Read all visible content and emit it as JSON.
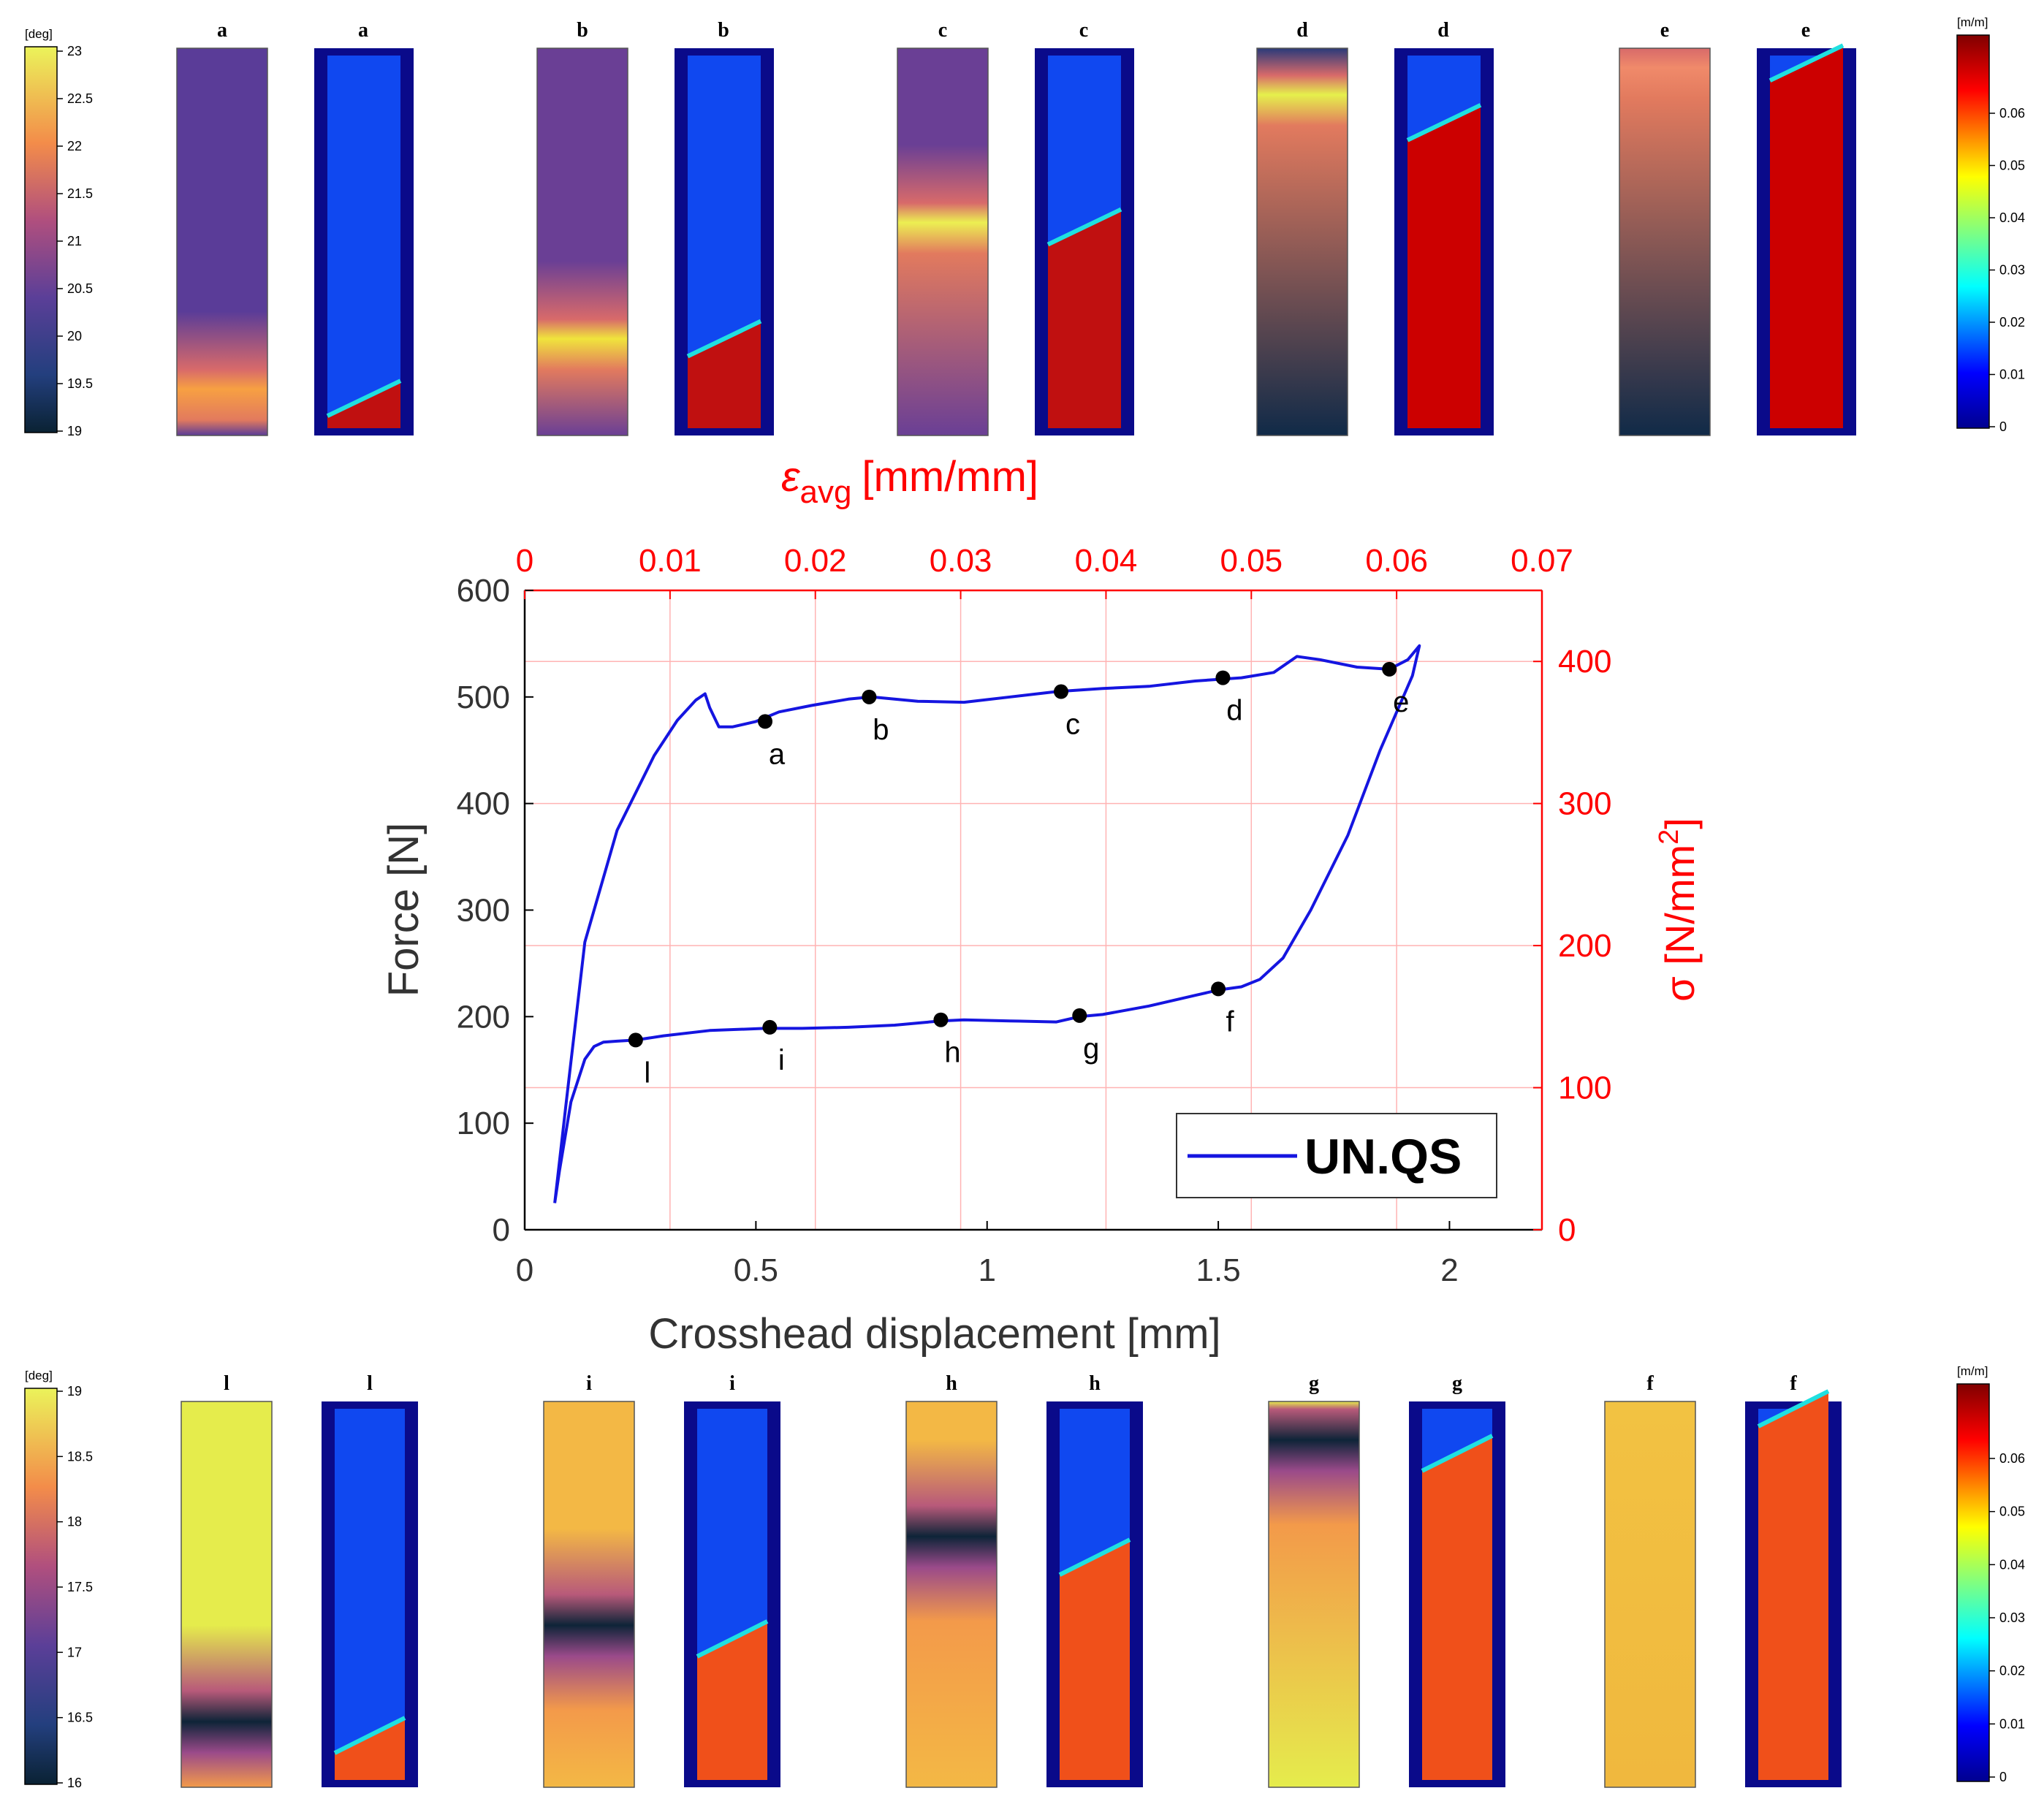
{
  "chart_data": {
    "type": "line",
    "title": "",
    "xlabel": "Crosshead displacement [mm]",
    "ylabel": "Force [N]",
    "xlim": [
      0,
      2.2
    ],
    "ylim": [
      0,
      600
    ],
    "xticks": [
      "0",
      "0.5",
      "1",
      "1.5",
      "2"
    ],
    "yticks": [
      "0",
      "100",
      "200",
      "300",
      "400",
      "500",
      "600"
    ],
    "x2label": "ε",
    "x2label_sub": "avg",
    "x2label_unit": "[mm/mm]",
    "x2lim": [
      0,
      0.07
    ],
    "x2ticks": [
      "0",
      "0.01",
      "0.02",
      "0.03",
      "0.04",
      "0.05",
      "0.06",
      "0.07"
    ],
    "y2label": "σ [N/mm",
    "y2label_sup": "2",
    "y2label_close": "]",
    "y2lim": [
      0,
      450
    ],
    "y2ticks": [
      "0",
      "100",
      "200",
      "300",
      "400"
    ],
    "grid": true,
    "legend": {
      "label": "UN.QS",
      "position": "bottom-right"
    },
    "series": [
      {
        "name": "UN.QS",
        "color": "#1515e0",
        "x": [
          0.065,
          0.09,
          0.13,
          0.2,
          0.28,
          0.33,
          0.37,
          0.39,
          0.4,
          0.42,
          0.45,
          0.5,
          0.55,
          0.62,
          0.7,
          0.75,
          0.85,
          0.95,
          1.05,
          1.15,
          1.25,
          1.35,
          1.45,
          1.55,
          1.62,
          1.67,
          1.72,
          1.8,
          1.87,
          1.91,
          1.935,
          1.92,
          1.85,
          1.78,
          1.7,
          1.64,
          1.59,
          1.55,
          1.5,
          1.45,
          1.35,
          1.25,
          1.2,
          1.15,
          1.05,
          0.95,
          0.9,
          0.8,
          0.7,
          0.6,
          0.52,
          0.4,
          0.3,
          0.24,
          0.2,
          0.17,
          0.15,
          0.13,
          0.1,
          0.075,
          0.065
        ],
        "y": [
          25,
          120,
          270,
          375,
          445,
          478,
          497,
          503,
          490,
          472,
          472,
          477,
          486,
          492,
          498,
          500,
          496,
          495,
          500,
          505,
          508,
          510,
          515,
          518,
          523,
          538,
          535,
          528,
          526,
          535,
          548,
          520,
          450,
          370,
          300,
          255,
          235,
          228,
          225,
          220,
          210,
          202,
          200,
          195,
          196,
          197,
          196,
          192,
          190,
          189,
          189,
          187,
          182,
          178,
          177,
          176,
          172,
          160,
          120,
          55,
          25
        ]
      }
    ],
    "points": [
      {
        "label": "a",
        "x": 0.52,
        "y": 477
      },
      {
        "label": "b",
        "x": 0.745,
        "y": 500
      },
      {
        "label": "c",
        "x": 1.16,
        "y": 505
      },
      {
        "label": "d",
        "x": 1.51,
        "y": 518
      },
      {
        "label": "e",
        "x": 1.87,
        "y": 526
      },
      {
        "label": "f",
        "x": 1.5,
        "y": 226
      },
      {
        "label": "g",
        "x": 1.2,
        "y": 201
      },
      {
        "label": "h",
        "x": 0.9,
        "y": 197
      },
      {
        "label": "i",
        "x": 0.53,
        "y": 190
      },
      {
        "label": "l",
        "x": 0.24,
        "y": 178
      }
    ]
  },
  "top_row": {
    "temp_colorbar": {
      "unit": "[deg]",
      "ticks": [
        "23",
        "22.5",
        "22",
        "21.5",
        "21",
        "20.5",
        "20",
        "19.5",
        "19"
      ]
    },
    "strain_colorbar": {
      "unit": "[m/m]",
      "ticks": [
        "0.06",
        "0.05",
        "0.04",
        "0.03",
        "0.02",
        "0.01",
        "0"
      ]
    },
    "pairs": [
      {
        "label": "a",
        "temp_band_y": 0.88,
        "temp_band_color": "#f7a042",
        "temp_base": "#5a3c98",
        "strain_front": 0.92
      },
      {
        "label": "b",
        "temp_band_y": 0.75,
        "temp_band_color": "#f0e43c",
        "temp_base": "#6a3f95",
        "strain_front": 0.76
      },
      {
        "label": "c",
        "temp_band_y": 0.45,
        "temp_band_color": "#ecef52",
        "temp_base": "#6a3f95",
        "strain_front": 0.46
      },
      {
        "label": "d",
        "temp_band_y": 0.12,
        "temp_band_color": "#e5f04c",
        "temp_base": "#2a3a7a",
        "strain_front": 0.18
      },
      {
        "label": "e",
        "temp_band_y": 0.05,
        "temp_band_color": "#f08a6a",
        "temp_base": "#1e3a6a",
        "strain_front": 0.02
      }
    ]
  },
  "bottom_row": {
    "temp_colorbar": {
      "unit": "[deg]",
      "ticks": [
        "19",
        "18.5",
        "18",
        "17.5",
        "17",
        "16.5",
        "16"
      ]
    },
    "strain_colorbar": {
      "unit": "[m/m]",
      "ticks": [
        "0.06",
        "0.05",
        "0.04",
        "0.03",
        "0.02",
        "0.01",
        "0"
      ]
    },
    "pairs": [
      {
        "label": "l",
        "cold_y": 0.83,
        "warm_color": "#e5ec4c",
        "strain_front": 0.88
      },
      {
        "label": "i",
        "cold_y": 0.58,
        "warm_color": "#f3b845",
        "strain_front": 0.62
      },
      {
        "label": "h",
        "cold_y": 0.35,
        "warm_color": "#f3b845",
        "strain_front": 0.4
      },
      {
        "label": "g",
        "cold_y": 0.1,
        "warm_color": "#e5ec4c",
        "strain_front": 0.12
      },
      {
        "label": "f",
        "cold_y": -1,
        "warm_color": "#f0c040",
        "strain_front": 0.0
      }
    ]
  }
}
